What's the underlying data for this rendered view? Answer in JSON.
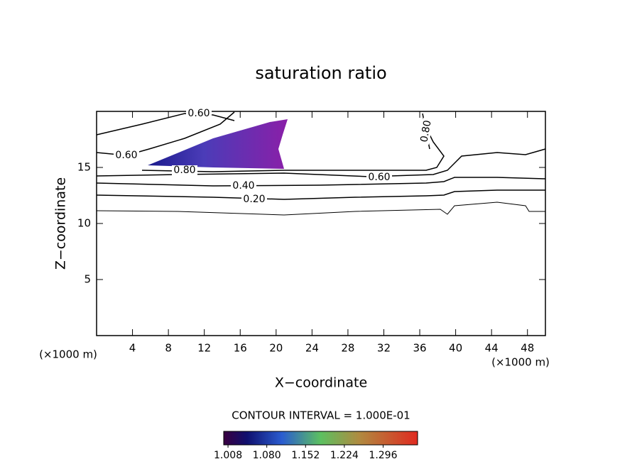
{
  "chart_data": {
    "type": "contour",
    "title": "saturation ratio",
    "x_label": "X−coordinate",
    "y_label": "Z−coordinate",
    "x_unit": "(×1000 m)",
    "y_unit": "(×1000 m)",
    "xlim": [
      0,
      50
    ],
    "xticks": [
      4,
      8,
      12,
      16,
      20,
      24,
      28,
      32,
      36,
      40,
      44,
      48
    ],
    "ylim": [
      0,
      20
    ],
    "yticks": [
      5,
      10,
      15
    ],
    "contour_labels": [
      {
        "value": 0.6,
        "label": "0.60"
      },
      {
        "value": 0.8,
        "label": "0.80"
      },
      {
        "value": 0.6,
        "label": "0.60"
      },
      {
        "value": 0.8,
        "label": "0.80"
      },
      {
        "value": 0.4,
        "label": "0.40"
      },
      {
        "value": 0.2,
        "label": "0.20"
      },
      {
        "value": 0.6,
        "label": "0.60"
      }
    ],
    "contour_interval": "CONTOUR INTERVAL = 1.000E-01",
    "colorbar": {
      "clim": [
        1.0,
        1.36
      ],
      "ticks": [
        1.008,
        {
          "value": 1.08,
          "label": "1.080"
        },
        1.152,
        1.224,
        1.296
      ]
    }
  }
}
